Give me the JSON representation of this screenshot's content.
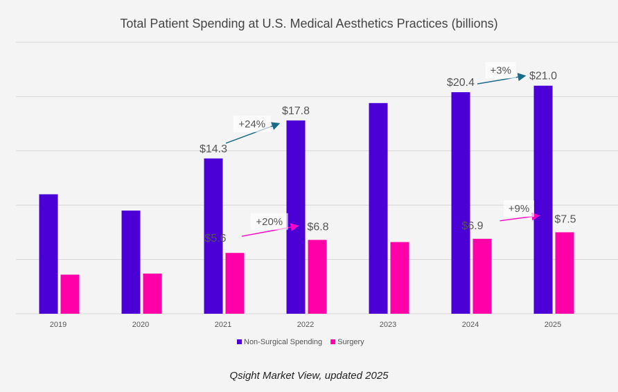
{
  "chart_data": {
    "type": "bar",
    "title": "Total Patient Spending at U.S. Medical Aesthetics Practices (billions)",
    "categories": [
      "2019",
      "2020",
      "2021",
      "2022",
      "2023",
      "2024",
      "2025"
    ],
    "series": [
      {
        "name": "Non-Surgical Spending",
        "color": "#4b00d6",
        "values": [
          11.0,
          9.5,
          14.3,
          17.8,
          19.4,
          20.4,
          21.0
        ]
      },
      {
        "name": "Surgery",
        "color": "#ff00a8",
        "values": [
          3.6,
          3.7,
          5.6,
          6.8,
          6.6,
          6.9,
          7.5
        ]
      }
    ],
    "data_labels": [
      {
        "series": 0,
        "category": "2021",
        "text": "$14.3"
      },
      {
        "series": 0,
        "category": "2022",
        "text": "$17.8"
      },
      {
        "series": 0,
        "category": "2024",
        "text": "$20.4"
      },
      {
        "series": 0,
        "category": "2025",
        "text": "$21.0"
      },
      {
        "series": 1,
        "category": "2021",
        "text": "$5.6"
      },
      {
        "series": 1,
        "category": "2022",
        "text": "$6.8"
      },
      {
        "series": 1,
        "category": "2024",
        "text": "$6.9"
      },
      {
        "series": 1,
        "category": "2025",
        "text": "$7.5"
      }
    ],
    "annotations": [
      {
        "text": "+24%",
        "from": "2021",
        "to": "2022",
        "series": 0,
        "color": "#1a6a8a"
      },
      {
        "text": "+20%",
        "from": "2021",
        "to": "2022",
        "series": 1,
        "color": "#ff00c8"
      },
      {
        "text": "+3%",
        "from": "2024",
        "to": "2025",
        "series": 0,
        "color": "#1a6a8a"
      },
      {
        "text": "+9%",
        "from": "2024",
        "to": "2025",
        "series": 1,
        "color": "#ff00c8"
      }
    ],
    "ylim": [
      0,
      25
    ],
    "grid": true,
    "legend_position": "bottom"
  },
  "source_note": "Qsight Market View, updated 2025"
}
